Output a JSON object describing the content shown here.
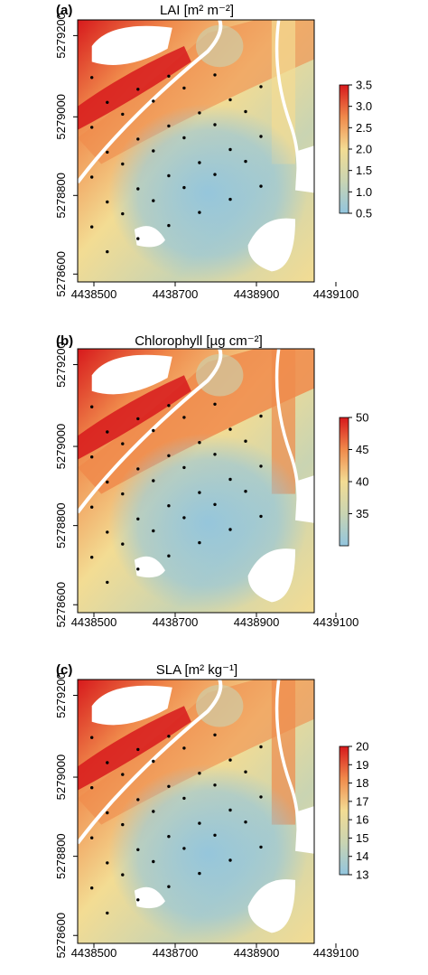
{
  "panels": [
    {
      "letter": "(a)",
      "title": "LAI [m² m⁻²]",
      "legend_ticks": [
        "3.5",
        "3.0",
        "2.5",
        "2.0",
        "1.5",
        "1.0",
        "0.5"
      ],
      "legend_values": [
        3.5,
        3.0,
        2.5,
        2.0,
        1.5,
        1.0,
        0.5
      ]
    },
    {
      "letter": "(b)",
      "title": "Chlorophyll [µg cm⁻²]",
      "legend_ticks": [
        "50",
        "45",
        "40",
        "35"
      ],
      "legend_values": [
        50,
        45,
        40,
        35
      ]
    },
    {
      "letter": "(c)",
      "title": "SLA [m² kg⁻¹]",
      "legend_ticks": [
        "20",
        "19",
        "18",
        "17",
        "16",
        "15",
        "14",
        "13"
      ],
      "legend_values": [
        20,
        19,
        18,
        17,
        16,
        15,
        14,
        13
      ]
    }
  ],
  "x_ticks": [
    "4438500",
    "4438700",
    "4438900",
    "4439100"
  ],
  "y_ticks": [
    "5279200",
    "5279000",
    "5278800",
    "5278600"
  ],
  "colors": {
    "high": "#d7191c",
    "mid_high": "#f08a4b",
    "mid": "#f3dc93",
    "mid_low": "#c9d4b2",
    "low": "#92c5de"
  }
}
